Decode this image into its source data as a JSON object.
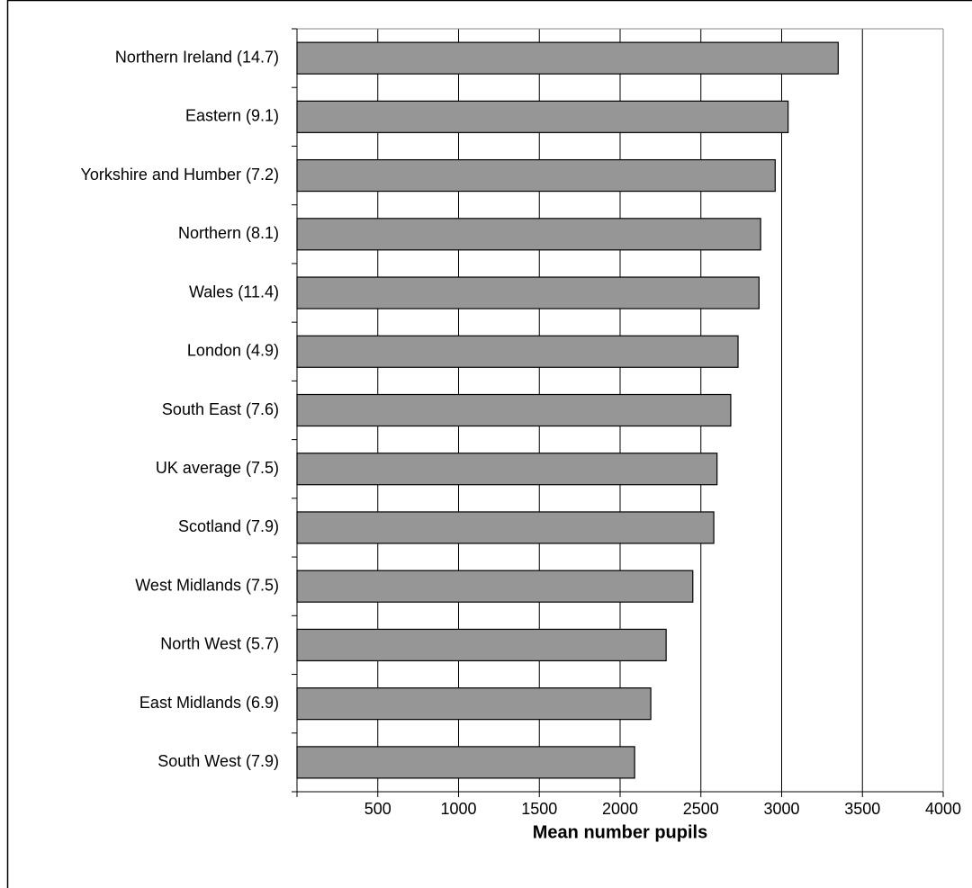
{
  "chart_data": {
    "type": "bar",
    "orientation": "horizontal",
    "x_label": "Mean number pupils",
    "categories": [
      "Northern Ireland (14.7)",
      "Eastern (9.1)",
      "Yorkshire and Humber (7.2)",
      "Northern (8.1)",
      "Wales (11.4)",
      "London (4.9)",
      "South East (7.6)",
      "UK average (7.5)",
      "Scotland (7.9)",
      "West Midlands (7.5)",
      "North West (5.7)",
      "East Midlands (6.9)",
      "South West (7.9)"
    ],
    "values": [
      3350,
      3040,
      2960,
      2870,
      2860,
      2730,
      2685,
      2600,
      2580,
      2450,
      2285,
      2190,
      2090
    ],
    "color": "#969696",
    "xlim": [
      0,
      4000
    ],
    "xticks": [
      500,
      1000,
      1500,
      2000,
      2500,
      3000,
      3500,
      4000
    ],
    "grid": true
  }
}
